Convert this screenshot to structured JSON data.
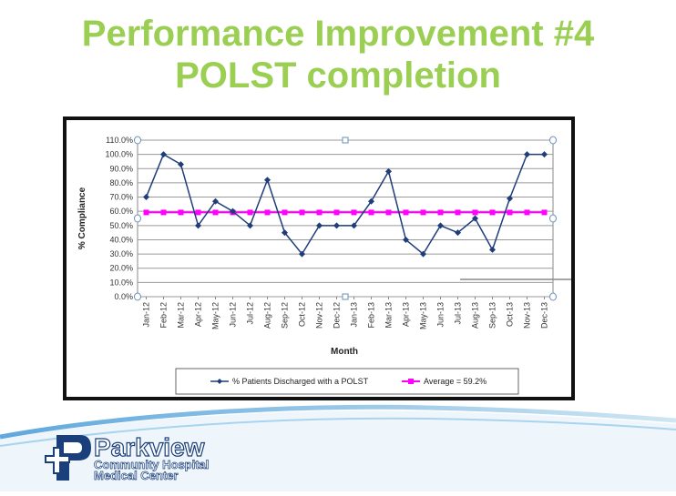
{
  "slide": {
    "title_line1": "Performance Improvement #4",
    "title_line2": "POLST completion"
  },
  "chart_data": {
    "type": "line",
    "title": "",
    "xlabel": "Month",
    "ylabel": "% Compliance",
    "ylim": [
      0,
      110
    ],
    "y_ticks": [
      "0.0%",
      "10.0%",
      "20.0%",
      "30.0%",
      "40.0%",
      "50.0%",
      "60.0%",
      "70.0%",
      "80.0%",
      "90.0%",
      "100.0%",
      "110.0%"
    ],
    "categories": [
      "Jan-12",
      "Feb-12",
      "Mar-12",
      "Apr-12",
      "May-12",
      "Jun-12",
      "Jul-12",
      "Aug-12",
      "Sep-12",
      "Oct-12",
      "Nov-12",
      "Dec-12",
      "Jan-13",
      "Feb-13",
      "Mar-13",
      "Apr-13",
      "May-13",
      "Jun-13",
      "Jul-13",
      "Aug-13",
      "Sep-13",
      "Oct-13",
      "Nov-13",
      "Dec-13"
    ],
    "grid": true,
    "legend_position": "bottom",
    "series": [
      {
        "name": "% Patients Discharged with a POLST",
        "color": "#1f3d7a",
        "marker": "diamond",
        "values": [
          70,
          100,
          93,
          50,
          67,
          60,
          50,
          82,
          45,
          30,
          50,
          50,
          50,
          67,
          88,
          40,
          30,
          50,
          45,
          55,
          33,
          69,
          100,
          100
        ]
      },
      {
        "name": "Average =  59.2%",
        "color": "#ff00ff",
        "marker": "square",
        "values": [
          59.2,
          59.2,
          59.2,
          59.2,
          59.2,
          59.2,
          59.2,
          59.2,
          59.2,
          59.2,
          59.2,
          59.2,
          59.2,
          59.2,
          59.2,
          59.2,
          59.2,
          59.2,
          59.2,
          59.2,
          59.2,
          59.2,
          59.2,
          59.2
        ]
      }
    ]
  },
  "logo": {
    "name": "Parkview",
    "line2": "Community Hospital",
    "line3": "Medical Center",
    "brand_color": "#1b3f7a",
    "accent_color": "#cfe6f3"
  }
}
